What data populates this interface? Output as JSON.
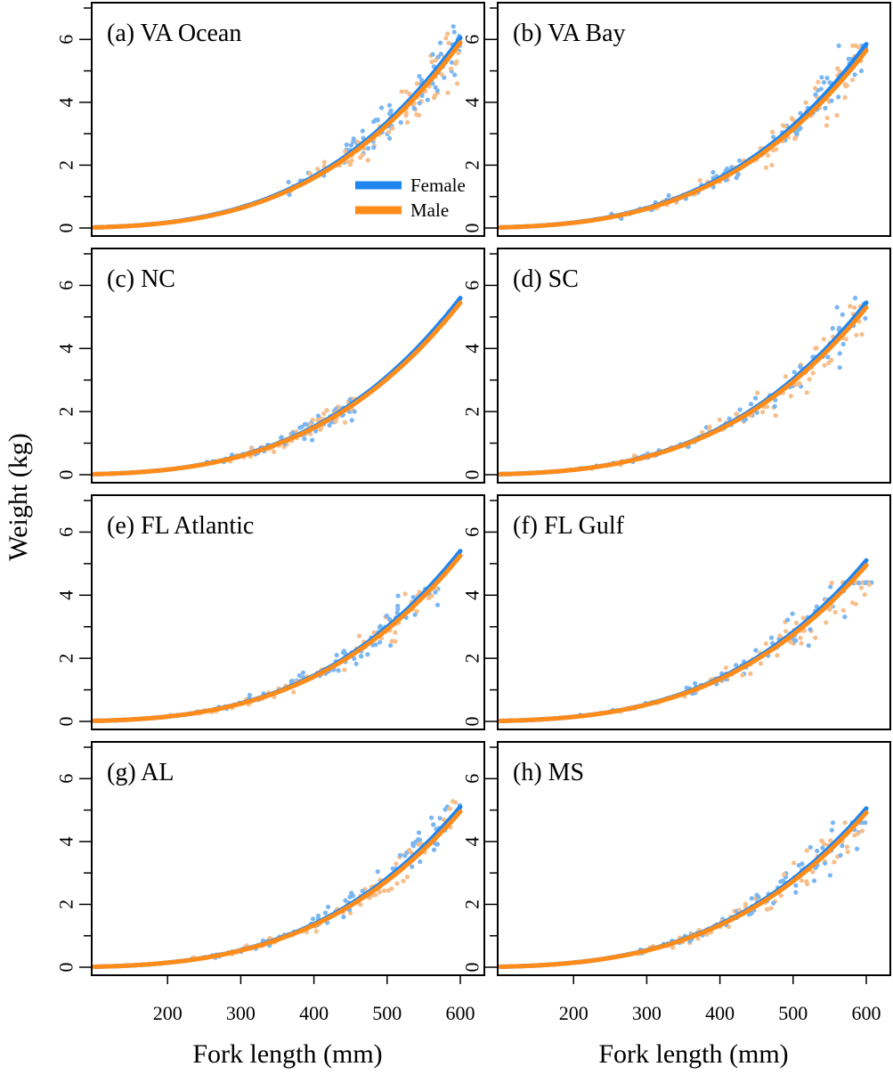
{
  "figure": {
    "ylabel": "Weight (kg)",
    "xlabel": "Fork length (mm)"
  },
  "colors": {
    "female": "#1f86ee",
    "male": "#ff8c1a",
    "female_points": "#7ab6f2",
    "male_points": "#f7be8a"
  },
  "chart_data": {
    "type": "scatter",
    "xlim": [
      100,
      600
    ],
    "ylim": [
      0,
      7
    ],
    "x_ticks": [
      200,
      300,
      400,
      500,
      600
    ],
    "y_ticks": [
      0,
      2,
      4,
      6
    ],
    "grid": false,
    "legend": {
      "placement": "bottom-right of panel (a)",
      "entries": [
        "Female",
        "Male"
      ]
    },
    "panels": [
      {
        "label": "(a) VA Ocean",
        "series": [
          {
            "name": "Female",
            "type": "line",
            "x": [
              100,
              200,
              300,
              400,
              500,
              600
            ],
            "y": [
              0.02,
              0.17,
              0.65,
              1.7,
              3.5,
              6.05
            ]
          },
          {
            "name": "Male",
            "type": "line",
            "x": [
              100,
              200,
              300,
              400,
              500,
              600
            ],
            "y": [
              0.02,
              0.17,
              0.63,
              1.65,
              3.4,
              5.9
            ]
          }
        ],
        "points_x_range": [
          360,
          600
        ],
        "points_y_range": [
          0.9,
          6.8
        ]
      },
      {
        "label": "(b) VA Bay",
        "series": [
          {
            "name": "Female",
            "type": "line",
            "x": [
              100,
              200,
              300,
              400,
              500,
              600
            ],
            "y": [
              0.02,
              0.17,
              0.63,
              1.65,
              3.35,
              5.85
            ]
          },
          {
            "name": "Male",
            "type": "line",
            "x": [
              100,
              200,
              300,
              400,
              500,
              600
            ],
            "y": [
              0.02,
              0.16,
              0.61,
              1.6,
              3.25,
              5.65
            ]
          }
        ],
        "points_x_range": [
          250,
          600
        ],
        "points_y_range": [
          0.3,
          5.8
        ]
      },
      {
        "label": "(c) NC",
        "series": [
          {
            "name": "Female",
            "type": "line",
            "x": [
              100,
              200,
              300,
              400,
              500,
              600
            ],
            "y": [
              0.02,
              0.16,
              0.6,
              1.55,
              3.2,
              5.6
            ]
          },
          {
            "name": "Male",
            "type": "line",
            "x": [
              100,
              200,
              300,
              400,
              500,
              600
            ],
            "y": [
              0.02,
              0.16,
              0.59,
              1.52,
              3.12,
              5.45
            ]
          }
        ],
        "points_x_range": [
          250,
          460
        ],
        "points_y_range": [
          0.4,
          2.4
        ]
      },
      {
        "label": "(d) SC",
        "series": [
          {
            "name": "Female",
            "type": "line",
            "x": [
              100,
              200,
              300,
              400,
              500,
              600
            ],
            "y": [
              0.02,
              0.16,
              0.58,
              1.52,
              3.12,
              5.45
            ]
          },
          {
            "name": "Male",
            "type": "line",
            "x": [
              100,
              200,
              300,
              400,
              500,
              600
            ],
            "y": [
              0.02,
              0.15,
              0.57,
              1.48,
              3.05,
              5.3
            ]
          }
        ],
        "points_x_range": [
          200,
          600
        ],
        "points_y_range": [
          0.2,
          5.6
        ]
      },
      {
        "label": "(e) FL Atlantic",
        "series": [
          {
            "name": "Female",
            "type": "line",
            "x": [
              100,
              200,
              300,
              400,
              500,
              600
            ],
            "y": [
              0.02,
              0.15,
              0.57,
              1.5,
              3.08,
              5.4
            ]
          },
          {
            "name": "Male",
            "type": "line",
            "x": [
              100,
              200,
              300,
              400,
              500,
              600
            ],
            "y": [
              0.02,
              0.15,
              0.56,
              1.46,
              3.0,
              5.25
            ]
          }
        ],
        "points_x_range": [
          200,
          570
        ],
        "points_y_range": [
          0.2,
          4.2
        ]
      },
      {
        "label": "(f) FL Gulf",
        "series": [
          {
            "name": "Female",
            "type": "line",
            "x": [
              100,
              200,
              300,
              400,
              500,
              600
            ],
            "y": [
              0.02,
              0.15,
              0.54,
              1.42,
              2.92,
              5.1
            ]
          },
          {
            "name": "Male",
            "type": "line",
            "x": [
              100,
              200,
              300,
              400,
              500,
              600
            ],
            "y": [
              0.02,
              0.14,
              0.53,
              1.38,
              2.85,
              4.95
            ]
          }
        ],
        "points_x_range": [
          200,
          610
        ],
        "points_y_range": [
          0.2,
          4.4
        ]
      },
      {
        "label": "(g) AL",
        "series": [
          {
            "name": "Female",
            "type": "line",
            "x": [
              100,
              200,
              300,
              400,
              500,
              600
            ],
            "y": [
              0.02,
              0.15,
              0.54,
              1.42,
              2.92,
              5.1
            ]
          },
          {
            "name": "Male",
            "type": "line",
            "x": [
              100,
              200,
              300,
              400,
              500,
              600
            ],
            "y": [
              0.02,
              0.14,
              0.53,
              1.38,
              2.85,
              4.95
            ]
          }
        ],
        "points_x_range": [
          230,
          600
        ],
        "points_y_range": [
          0.3,
          5.6
        ]
      },
      {
        "label": "(h) MS",
        "series": [
          {
            "name": "Female",
            "type": "line",
            "x": [
              100,
              200,
              300,
              400,
              500,
              600
            ],
            "y": [
              0.02,
              0.15,
              0.54,
              1.42,
              2.92,
              5.05
            ]
          },
          {
            "name": "Male",
            "type": "line",
            "x": [
              100,
              200,
              300,
              400,
              500,
              600
            ],
            "y": [
              0.02,
              0.14,
              0.53,
              1.38,
              2.85,
              4.92
            ]
          }
        ],
        "points_x_range": [
          250,
          600
        ],
        "points_y_range": [
          0.4,
          4.6
        ]
      }
    ]
  }
}
